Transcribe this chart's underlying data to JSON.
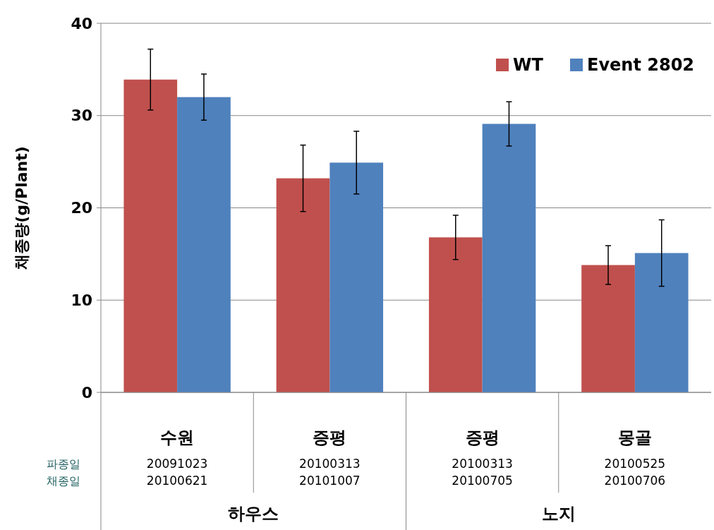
{
  "chart_data": {
    "type": "bar",
    "ylabel": "채종량(g/Plant)",
    "categories": [
      "수원\n20091023\n20100621",
      "증평\n20100313\n20101007",
      "증평\n20100313\n20100705",
      "몽골\n20100525\n20100706"
    ],
    "series": [
      {
        "name": "WT",
        "color": "#c0504d",
        "values": [
          33.9,
          23.2,
          16.8,
          13.8
        ],
        "errors": [
          3.3,
          3.6,
          2.4,
          2.1
        ]
      },
      {
        "name": "Event 2802",
        "color": "#4f81bd",
        "values": [
          32.0,
          24.9,
          29.1,
          15.1
        ],
        "errors": [
          2.5,
          3.4,
          2.4,
          3.6
        ]
      }
    ],
    "ylim": [
      0,
      40
    ],
    "yticks": [
      0,
      10,
      20,
      30,
      40
    ],
    "grid": "y",
    "legend": "top right",
    "annotations": [
      "파종일",
      "채종일",
      "하우스",
      "노지"
    ]
  }
}
